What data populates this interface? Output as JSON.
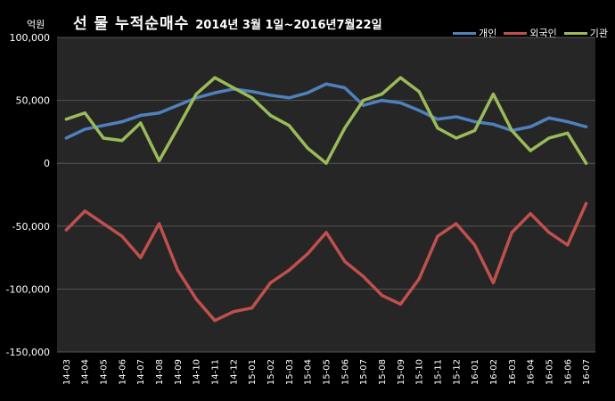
{
  "chart_data": {
    "type": "line",
    "title": "선 물 누적순매수",
    "subtitle": "2014년 3월 1일~2016년7월22일",
    "ylabel": "억원",
    "xlabel": "",
    "ylim": [
      -150000,
      100000
    ],
    "yticks": [
      100000,
      50000,
      0,
      -50000,
      -100000,
      -150000
    ],
    "ytick_labels": [
      "100,000",
      "50,000",
      "0",
      "-50,000",
      "-100,000",
      "-150,000"
    ],
    "categories": [
      "14-03",
      "14-04",
      "14-05",
      "14-06",
      "14-07",
      "14-08",
      "14-09",
      "14-10",
      "14-11",
      "14-12",
      "15-01",
      "15-02",
      "15-03",
      "15-04",
      "15-05",
      "15-06",
      "15-07",
      "15-08",
      "15-09",
      "15-10",
      "15-11",
      "15-12",
      "16-01",
      "16-02",
      "16-03",
      "16-04",
      "16-05",
      "16-06",
      "16-07"
    ],
    "grid": true,
    "legend_position": "top-right",
    "background": "#000000",
    "series": [
      {
        "name": "개인",
        "color": "#4F81BD",
        "values": [
          20000,
          27000,
          30000,
          33000,
          38000,
          40000,
          46000,
          52000,
          56000,
          59000,
          57000,
          54000,
          52000,
          56000,
          63000,
          60000,
          46000,
          50000,
          48000,
          42000,
          35000,
          37000,
          33000,
          31000,
          26000,
          29000,
          36000,
          33000,
          29000
        ]
      },
      {
        "name": "외국인",
        "color": "#C0504D",
        "values": [
          -53000,
          -38000,
          -48000,
          -58000,
          -75000,
          -48000,
          -85000,
          -108000,
          -125000,
          -118000,
          -115000,
          -95000,
          -85000,
          -72000,
          -55000,
          -78000,
          -90000,
          -105000,
          -112000,
          -92000,
          -58000,
          -48000,
          -65000,
          -95000,
          -55000,
          -40000,
          -55000,
          -65000,
          -32000
        ]
      },
      {
        "name": "기관",
        "color": "#9BBB59",
        "values": [
          35000,
          40000,
          20000,
          18000,
          32000,
          2000,
          28000,
          55000,
          68000,
          60000,
          52000,
          38000,
          30000,
          12000,
          0,
          28000,
          50000,
          55000,
          68000,
          57000,
          28000,
          20000,
          26000,
          55000,
          26000,
          10000,
          20000,
          24000,
          0
        ]
      }
    ]
  }
}
